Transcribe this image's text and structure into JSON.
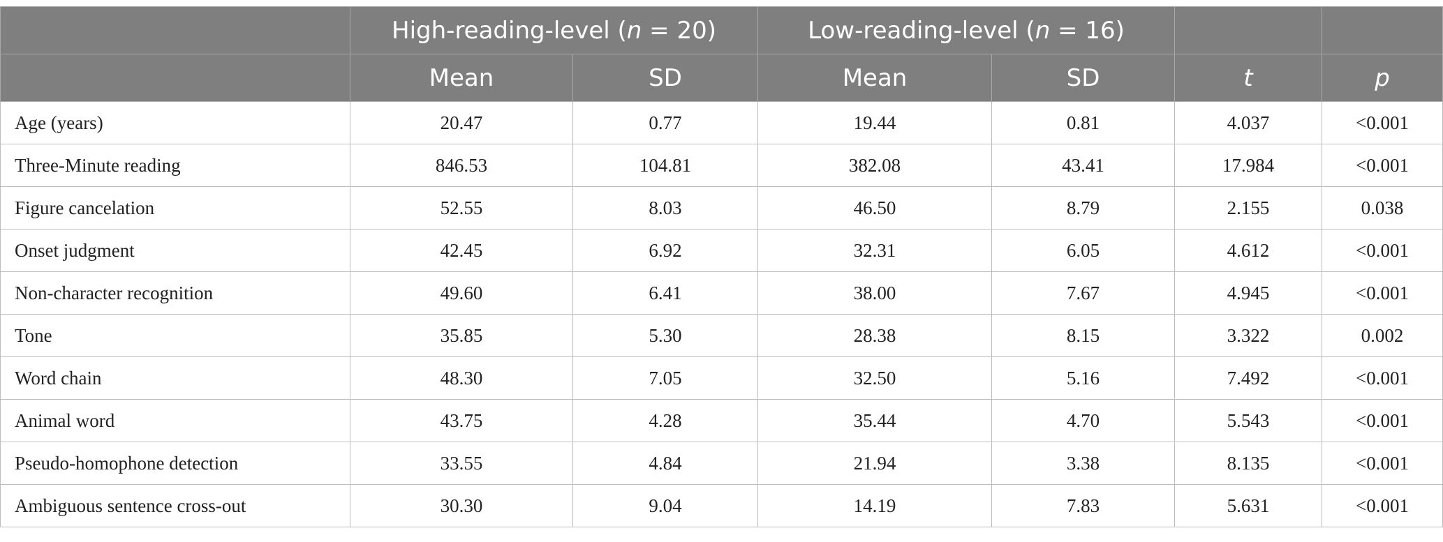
{
  "table": {
    "groups": [
      {
        "before": "High-reading-level (",
        "italic": "n",
        "after": " = 20)"
      },
      {
        "before": "Low-reading-level (",
        "italic": "n",
        "after": " = 16)"
      }
    ],
    "columns": [
      "Mean",
      "SD",
      "Mean",
      "SD",
      "t",
      "p"
    ],
    "rows": [
      [
        "Age (years)",
        "20.47",
        "0.77",
        "19.44",
        "0.81",
        "4.037",
        "<0.001"
      ],
      [
        "Three-Minute reading",
        "846.53",
        "104.81",
        "382.08",
        "43.41",
        "17.984",
        "<0.001"
      ],
      [
        "Figure cancelation",
        "52.55",
        "8.03",
        "46.50",
        "8.79",
        "2.155",
        "0.038"
      ],
      [
        "Onset judgment",
        "42.45",
        "6.92",
        "32.31",
        "6.05",
        "4.612",
        "<0.001"
      ],
      [
        "Non-character recognition",
        "49.60",
        "6.41",
        "38.00",
        "7.67",
        "4.945",
        "<0.001"
      ],
      [
        "Tone",
        "35.85",
        "5.30",
        "28.38",
        "8.15",
        "3.322",
        "0.002"
      ],
      [
        "Word chain",
        "48.30",
        "7.05",
        "32.50",
        "5.16",
        "7.492",
        "<0.001"
      ],
      [
        "Animal word",
        "43.75",
        "4.28",
        "35.44",
        "4.70",
        "5.543",
        "<0.001"
      ],
      [
        "Pseudo-homophone detection",
        "33.55",
        "4.84",
        "21.94",
        "3.38",
        "8.135",
        "<0.001"
      ],
      [
        "Ambiguous sentence cross-out",
        "30.30",
        "9.04",
        "14.19",
        "7.83",
        "5.631",
        "<0.001"
      ]
    ]
  }
}
